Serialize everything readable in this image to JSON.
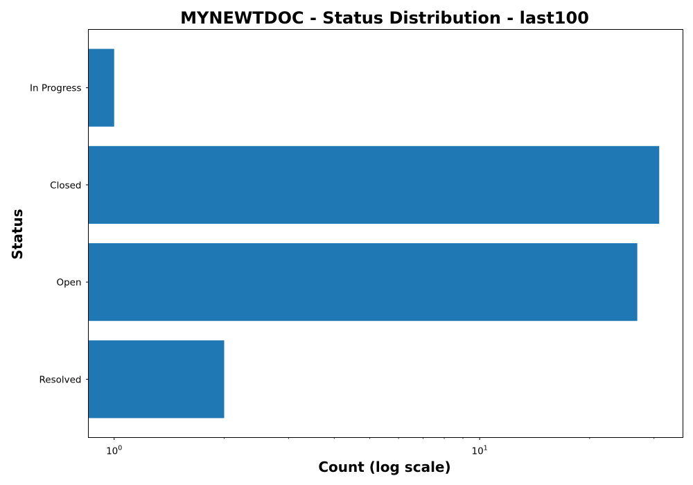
{
  "chart_data": {
    "type": "bar",
    "orientation": "horizontal",
    "title": "MYNEWTDOC - Status Distribution - last100",
    "xlabel": "Count (log scale)",
    "ylabel": "Status",
    "x_scale": "log",
    "xlim": [
      0.85,
      36
    ],
    "categories": [
      "In Progress",
      "Closed",
      "Open",
      "Resolved"
    ],
    "values": [
      1,
      31,
      27,
      2
    ],
    "major_ticks": [
      {
        "value": 1,
        "base": "10",
        "exp": "0"
      },
      {
        "value": 10,
        "base": "10",
        "exp": "1"
      }
    ],
    "minor_ticks": [
      2,
      3,
      4,
      5,
      6,
      7,
      8,
      9,
      20,
      30
    ],
    "grid": false,
    "bar_color": "#1f77b4"
  }
}
